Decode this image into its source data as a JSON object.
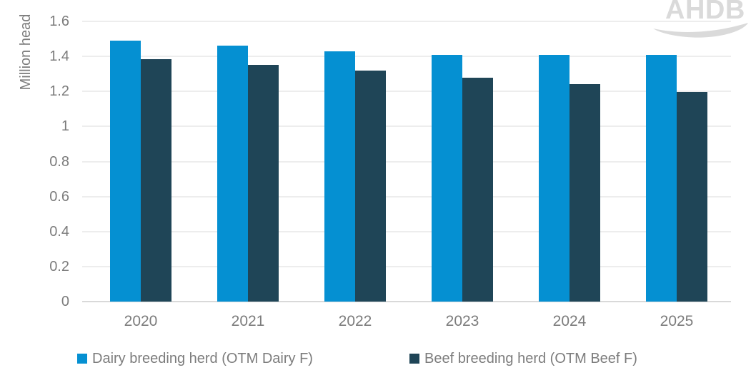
{
  "watermark": {
    "text": "AHDB"
  },
  "chart_data": {
    "type": "bar",
    "title": "",
    "xlabel": "",
    "ylabel": "Million head",
    "categories": [
      "2020",
      "2021",
      "2022",
      "2023",
      "2024",
      "2025"
    ],
    "series": [
      {
        "name": "Dairy breeding herd (OTM Dairy F)",
        "key": "dairy",
        "color": "#0590d2",
        "values": [
          1.49,
          1.46,
          1.43,
          1.41,
          1.41,
          1.41
        ]
      },
      {
        "name": "Beef breeding herd (OTM Beef F)",
        "key": "beef",
        "color": "#1f4557",
        "values": [
          1.385,
          1.35,
          1.32,
          1.28,
          1.24,
          1.195
        ]
      }
    ],
    "ylim": [
      0,
      1.6
    ],
    "ytick_step": 0.2,
    "yticks": [
      "1.6",
      "1.4",
      "1.2",
      "1",
      "0.8",
      "0.6",
      "0.4",
      "0.2",
      "0"
    ],
    "grid": true,
    "legend_position": "bottom"
  },
  "colors": {
    "dairy_bar": "#0590d2",
    "beef_bar": "#1f4557",
    "axis_text": "#7c7c7c",
    "gridline": "#ededed",
    "axis_line": "#d9d9d9",
    "watermark": "#dadada"
  }
}
